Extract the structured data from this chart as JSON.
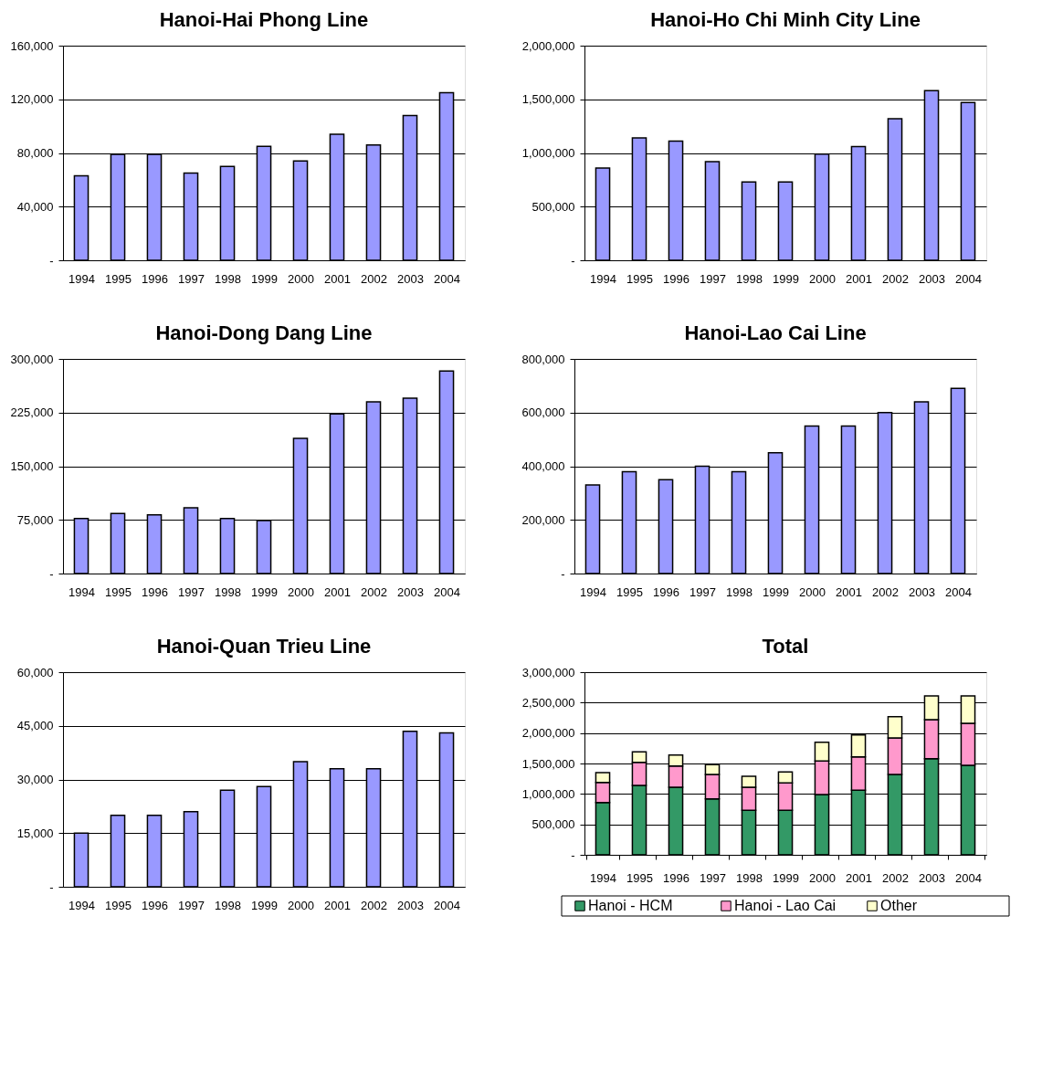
{
  "chart_data": [
    {
      "type": "bar",
      "title": "Hanoi-Hai Phong Line",
      "categories": [
        "1994",
        "1995",
        "1996",
        "1997",
        "1998",
        "1999",
        "2000",
        "2001",
        "2002",
        "2003",
        "2004"
      ],
      "values": [
        63000,
        79000,
        79000,
        65000,
        70000,
        85000,
        74000,
        94000,
        86000,
        108000,
        125000
      ],
      "color": "#9999ff",
      "ylim": [
        0,
        160000
      ],
      "yticks": [
        {
          "value": 0,
          "label": "-"
        },
        {
          "value": 40000,
          "label": "40,000"
        },
        {
          "value": 80000,
          "label": "80,000"
        },
        {
          "value": 120000,
          "label": "120,000"
        },
        {
          "value": 160000,
          "label": "160,000"
        }
      ],
      "grid": "y"
    },
    {
      "type": "bar",
      "title": "Hanoi-Ho Chi Minh City Line",
      "categories": [
        "1994",
        "1995",
        "1996",
        "1997",
        "1998",
        "1999",
        "2000",
        "2001",
        "2002",
        "2003",
        "2004"
      ],
      "values": [
        860000,
        1140000,
        1110000,
        920000,
        730000,
        730000,
        990000,
        1060000,
        1320000,
        1580000,
        1470000
      ],
      "color": "#9999ff",
      "ylim": [
        0,
        2000000
      ],
      "yticks": [
        {
          "value": 0,
          "label": "-"
        },
        {
          "value": 500000,
          "label": "500,000"
        },
        {
          "value": 1000000,
          "label": "1,000,000"
        },
        {
          "value": 1500000,
          "label": "1,500,000"
        },
        {
          "value": 2000000,
          "label": "2,000,000"
        }
      ],
      "grid": "y"
    },
    {
      "type": "bar",
      "title": "Hanoi-Dong Dang Line",
      "categories": [
        "1994",
        "1995",
        "1996",
        "1997",
        "1998",
        "1999",
        "2000",
        "2001",
        "2002",
        "2003",
        "2004"
      ],
      "values": [
        77000,
        84000,
        82000,
        92000,
        77000,
        74000,
        189000,
        223000,
        240000,
        245000,
        283000
      ],
      "color": "#9999ff",
      "ylim": [
        0,
        300000
      ],
      "yticks": [
        {
          "value": 0,
          "label": "-"
        },
        {
          "value": 75000,
          "label": "75,000"
        },
        {
          "value": 150000,
          "label": "150,000"
        },
        {
          "value": 225000,
          "label": "225,000"
        },
        {
          "value": 300000,
          "label": "300,000"
        }
      ],
      "grid": "y"
    },
    {
      "type": "bar",
      "title": "Hanoi-Lao Cai Line",
      "categories": [
        "1994",
        "1995",
        "1996",
        "1997",
        "1998",
        "1999",
        "2000",
        "2001",
        "2002",
        "2003",
        "2004"
      ],
      "values": [
        330000,
        380000,
        350000,
        400000,
        380000,
        450000,
        550000,
        550000,
        600000,
        640000,
        690000
      ],
      "color": "#9999ff",
      "ylim": [
        0,
        800000
      ],
      "yticks": [
        {
          "value": 0,
          "label": "-"
        },
        {
          "value": 200000,
          "label": "200,000"
        },
        {
          "value": 400000,
          "label": "400,000"
        },
        {
          "value": 600000,
          "label": "600,000"
        },
        {
          "value": 800000,
          "label": "800,000"
        }
      ],
      "grid": "y"
    },
    {
      "type": "bar",
      "title": "Hanoi-Quan Trieu Line",
      "categories": [
        "1994",
        "1995",
        "1996",
        "1997",
        "1998",
        "1999",
        "2000",
        "2001",
        "2002",
        "2003",
        "2004"
      ],
      "values": [
        15000,
        20000,
        20000,
        21000,
        27000,
        28000,
        35000,
        33000,
        33000,
        43500,
        43000
      ],
      "color": "#9999ff",
      "ylim": [
        0,
        60000
      ],
      "yticks": [
        {
          "value": 0,
          "label": "-"
        },
        {
          "value": 15000,
          "label": "15,000"
        },
        {
          "value": 30000,
          "label": "30,000"
        },
        {
          "value": 45000,
          "label": "45,000"
        },
        {
          "value": 60000,
          "label": "60,000"
        }
      ],
      "grid": "y"
    },
    {
      "type": "bar",
      "title": "Total",
      "stacked": true,
      "categories": [
        "1994",
        "1995",
        "1996",
        "1997",
        "1998",
        "1999",
        "2000",
        "2001",
        "2002",
        "2003",
        "2004"
      ],
      "series": [
        {
          "name": "Hanoi - HCM",
          "color": "#339966",
          "values": [
            860000,
            1140000,
            1110000,
            920000,
            730000,
            730000,
            990000,
            1060000,
            1320000,
            1580000,
            1470000
          ]
        },
        {
          "name": "Hanoi - Lao Cai",
          "color": "#ff99cc",
          "values": [
            330000,
            380000,
            350000,
            400000,
            380000,
            450000,
            550000,
            550000,
            600000,
            640000,
            690000
          ]
        },
        {
          "name": "Other",
          "color": "#ffffcc",
          "values": [
            160000,
            170000,
            180000,
            160000,
            180000,
            180000,
            310000,
            360000,
            350000,
            390000,
            450000
          ]
        }
      ],
      "ylim": [
        0,
        3000000
      ],
      "yticks": [
        {
          "value": 0,
          "label": "-"
        },
        {
          "value": 500000,
          "label": "500,000"
        },
        {
          "value": 1000000,
          "label": "1,000,000"
        },
        {
          "value": 1500000,
          "label": "1,500,000"
        },
        {
          "value": 2000000,
          "label": "2,000,000"
        },
        {
          "value": 2500000,
          "label": "2,500,000"
        },
        {
          "value": 3000000,
          "label": "3,000,000"
        }
      ],
      "grid": "y",
      "legend": "bottom"
    }
  ]
}
